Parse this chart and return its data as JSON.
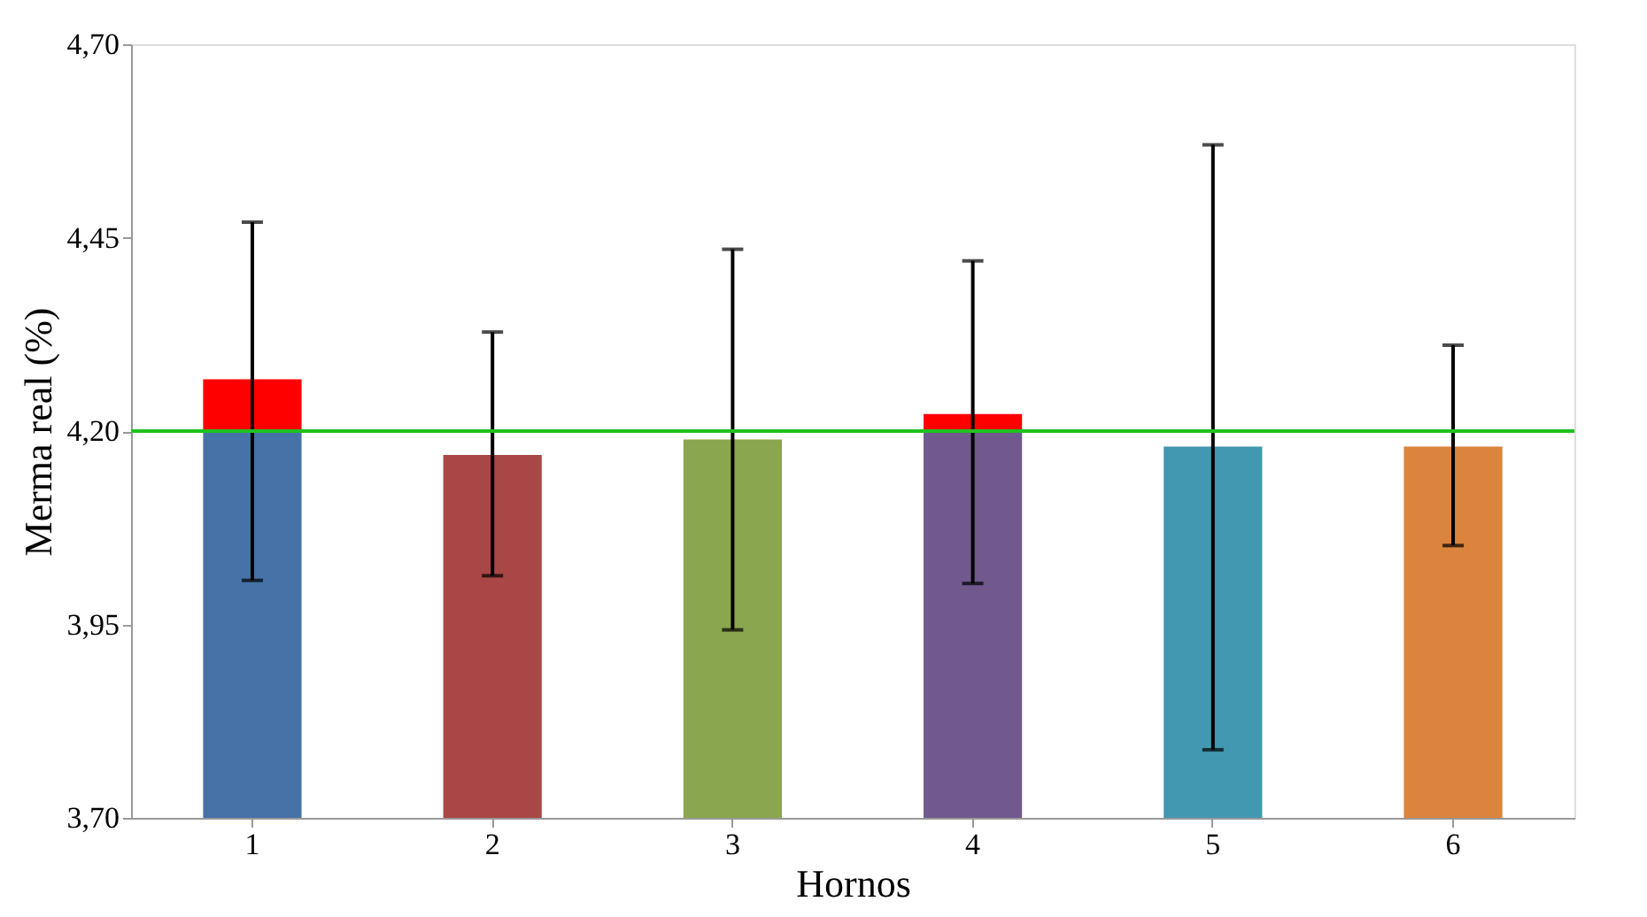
{
  "chart_data": {
    "type": "bar",
    "xlabel": "Hornos",
    "ylabel": "Merma real (%)",
    "categories": [
      "1",
      "2",
      "3",
      "4",
      "5",
      "6"
    ],
    "series": [
      {
        "colors": [
          "#4672a8",
          "#a84745",
          "#8aa64e",
          "#71598e",
          "#4298b0",
          "#db843d"
        ],
        "values": [
          4.2,
          4.169,
          4.189,
          4.2,
          4.18,
          4.18
        ],
        "errors": [
          null,
          [
            4.013,
            4.328
          ],
          [
            3.943,
            4.435
          ],
          null,
          [
            3.788,
            4.57
          ],
          [
            4.052,
            4.311
          ]
        ]
      },
      {
        "color": "#ff0000",
        "base": [
          4.2,
          null,
          null,
          4.2,
          null,
          null
        ],
        "values": [
          0.067,
          null,
          null,
          0.022,
          null,
          null
        ],
        "errors": [
          [
            4.007,
            4.47
          ],
          null,
          null,
          [
            4.003,
            4.42
          ],
          null,
          null
        ]
      }
    ],
    "ylim": [
      3.7,
      4.7
    ],
    "yticks": [
      {
        "value": 3.7,
        "label": "3,70"
      },
      {
        "value": 3.95,
        "label": "3,95"
      },
      {
        "value": 4.2,
        "label": "4,20"
      },
      {
        "value": 4.45,
        "label": "4,45"
      },
      {
        "value": 4.7,
        "label": "4,70"
      }
    ],
    "ref_lines": [
      {
        "axis": "y",
        "value": 4.2,
        "color": "#1fc21f"
      }
    ],
    "grid": false
  }
}
